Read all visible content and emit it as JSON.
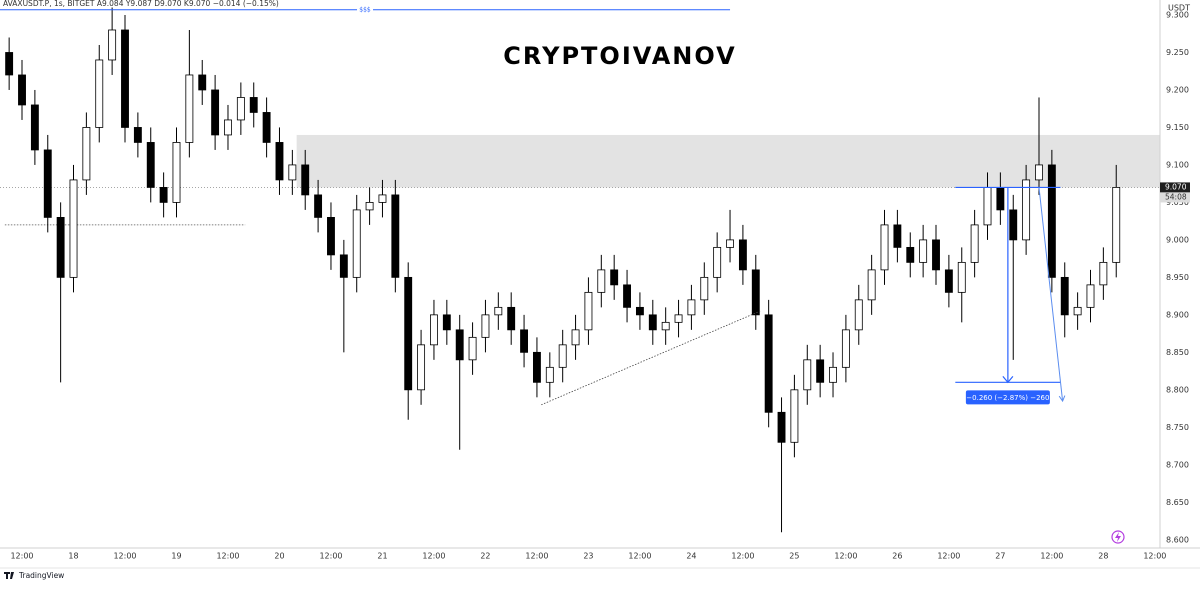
{
  "chart_data": {
    "type": "candlestick",
    "header": "AVAXUSDT.P, 1s, BITGET  A9.084  Y9.087  D9.070  K9.070  −0.014 (−0.15%)",
    "watermark": "CRYPTOIVANOV",
    "y_unit": "USDT",
    "footer": "TradingView",
    "up_color": "#ffffff",
    "down_color": "#000000",
    "outline_color": "#000000",
    "grid": false,
    "xlim": [
      -5.13,
      265.2
    ],
    "ylim": [
      8.589,
      9.32
    ],
    "xticks": [
      {
        "value": 0,
        "label": "12:00"
      },
      {
        "value": 12,
        "label": "18"
      },
      {
        "value": 24,
        "label": "12:00"
      },
      {
        "value": 36,
        "label": "19"
      },
      {
        "value": 48,
        "label": "12:00"
      },
      {
        "value": 60,
        "label": "20"
      },
      {
        "value": 72,
        "label": "12:00"
      },
      {
        "value": 84,
        "label": "21"
      },
      {
        "value": 96,
        "label": "12:00"
      },
      {
        "value": 108,
        "label": "22"
      },
      {
        "value": 120,
        "label": "12:00"
      },
      {
        "value": 132,
        "label": "23"
      },
      {
        "value": 144,
        "label": "12:00"
      },
      {
        "value": 156,
        "label": "24"
      },
      {
        "value": 168,
        "label": "12:00"
      },
      {
        "value": 180,
        "label": "25"
      },
      {
        "value": 192,
        "label": "12:00"
      },
      {
        "value": 204,
        "label": "26"
      },
      {
        "value": 216,
        "label": "12:00"
      },
      {
        "value": 228,
        "label": "27"
      },
      {
        "value": 240,
        "label": "12:00"
      },
      {
        "value": 252,
        "label": "28"
      },
      {
        "value": 264,
        "label": "12:00"
      }
    ],
    "yticks": [
      {
        "value": 8.6,
        "label": "8.600"
      },
      {
        "value": 8.65,
        "label": "8.650"
      },
      {
        "value": 8.7,
        "label": "8.700"
      },
      {
        "value": 8.75,
        "label": "8.750"
      },
      {
        "value": 8.8,
        "label": "8.800"
      },
      {
        "value": 8.85,
        "label": "8.850"
      },
      {
        "value": 8.9,
        "label": "8.900"
      },
      {
        "value": 8.95,
        "label": "8.950"
      },
      {
        "value": 9.0,
        "label": "9.000"
      },
      {
        "value": 9.05,
        "label": "9.050"
      },
      {
        "value": 9.1,
        "label": "9.100"
      },
      {
        "value": 9.15,
        "label": "9.150"
      },
      {
        "value": 9.2,
        "label": "9.200"
      },
      {
        "value": 9.25,
        "label": "9.250"
      },
      {
        "value": 9.3,
        "label": "9.300"
      }
    ],
    "x": [
      -3,
      0,
      3,
      6,
      9,
      12,
      15,
      18,
      21,
      24,
      27,
      30,
      33,
      36,
      39,
      42,
      45,
      48,
      51,
      54,
      57,
      60,
      63,
      66,
      69,
      72,
      75,
      78,
      81,
      84,
      87,
      90,
      93,
      96,
      99,
      102,
      105,
      108,
      111,
      114,
      117,
      120,
      123,
      126,
      129,
      132,
      135,
      138,
      141,
      144,
      147,
      150,
      153,
      156,
      159,
      162,
      165,
      168,
      171,
      174,
      177,
      180,
      183,
      186,
      189,
      192,
      195,
      198,
      201,
      204,
      207,
      210,
      213,
      216,
      219,
      222,
      225,
      228,
      231,
      234,
      237,
      240,
      243,
      246,
      249,
      252,
      255
    ],
    "open": [
      9.25,
      9.22,
      9.18,
      9.12,
      9.03,
      8.95,
      9.08,
      9.15,
      9.24,
      9.28,
      9.15,
      9.13,
      9.07,
      9.05,
      9.13,
      9.22,
      9.2,
      9.14,
      9.16,
      9.19,
      9.17,
      9.13,
      9.08,
      9.1,
      9.06,
      9.03,
      8.98,
      8.95,
      9.04,
      9.05,
      9.06,
      8.95,
      8.8,
      8.86,
      8.9,
      8.88,
      8.84,
      8.87,
      8.9,
      8.91,
      8.88,
      8.85,
      8.81,
      8.83,
      8.86,
      8.88,
      8.93,
      8.96,
      8.94,
      8.91,
      8.9,
      8.88,
      8.89,
      8.9,
      8.92,
      8.95,
      8.99,
      9.0,
      8.96,
      8.9,
      8.77,
      8.73,
      8.8,
      8.84,
      8.81,
      8.83,
      8.88,
      8.92,
      8.96,
      9.02,
      8.99,
      8.97,
      9.0,
      8.96,
      8.93,
      8.97,
      9.02,
      9.07,
      9.04,
      9.0,
      9.08,
      9.1,
      8.95,
      8.9,
      8.91,
      8.94,
      8.97
    ],
    "high": [
      9.27,
      9.24,
      9.2,
      9.14,
      9.05,
      9.1,
      9.17,
      9.26,
      9.31,
      9.3,
      9.17,
      9.15,
      9.09,
      9.15,
      9.28,
      9.24,
      9.22,
      9.18,
      9.21,
      9.21,
      9.19,
      9.15,
      9.12,
      9.12,
      9.08,
      9.05,
      9.0,
      9.06,
      9.07,
      9.08,
      9.08,
      8.97,
      8.88,
      8.92,
      8.92,
      8.9,
      8.89,
      8.92,
      8.93,
      8.93,
      8.9,
      8.87,
      8.85,
      8.88,
      8.9,
      8.95,
      8.98,
      8.98,
      8.96,
      8.93,
      8.92,
      8.91,
      8.92,
      8.94,
      8.97,
      9.01,
      9.04,
      9.02,
      8.98,
      8.92,
      8.79,
      8.82,
      8.86,
      8.86,
      8.85,
      8.9,
      8.94,
      8.98,
      9.04,
      9.04,
      9.01,
      9.02,
      9.02,
      8.98,
      8.99,
      9.04,
      9.09,
      9.09,
      9.06,
      9.1,
      9.19,
      9.12,
      8.97,
      8.93,
      8.96,
      8.99,
      9.1
    ],
    "low": [
      9.2,
      9.16,
      9.1,
      9.01,
      8.81,
      8.93,
      9.06,
      9.13,
      9.22,
      9.13,
      9.11,
      9.05,
      9.03,
      9.03,
      9.11,
      9.18,
      9.12,
      9.12,
      9.14,
      9.15,
      9.11,
      9.06,
      9.06,
      9.04,
      9.01,
      8.96,
      8.85,
      8.93,
      9.02,
      9.03,
      8.93,
      8.76,
      8.78,
      8.84,
      8.86,
      8.72,
      8.82,
      8.85,
      8.88,
      8.86,
      8.83,
      8.79,
      8.79,
      8.81,
      8.84,
      8.86,
      8.91,
      8.92,
      8.89,
      8.88,
      8.86,
      8.86,
      8.87,
      8.88,
      8.9,
      8.93,
      8.97,
      8.94,
      8.88,
      8.75,
      8.61,
      8.71,
      8.78,
      8.79,
      8.79,
      8.81,
      8.86,
      8.9,
      8.94,
      8.97,
      8.95,
      8.95,
      8.94,
      8.91,
      8.89,
      8.95,
      9.0,
      9.02,
      8.84,
      8.98,
      9.06,
      8.93,
      8.87,
      8.88,
      8.89,
      8.92,
      8.95
    ],
    "close": [
      9.22,
      9.18,
      9.12,
      9.03,
      8.95,
      9.08,
      9.15,
      9.24,
      9.28,
      9.15,
      9.13,
      9.07,
      9.05,
      9.13,
      9.22,
      9.2,
      9.14,
      9.16,
      9.19,
      9.17,
      9.13,
      9.08,
      9.1,
      9.06,
      9.03,
      8.98,
      8.95,
      9.04,
      9.05,
      9.06,
      8.95,
      8.8,
      8.86,
      8.9,
      8.88,
      8.84,
      8.87,
      8.9,
      8.91,
      8.88,
      8.85,
      8.81,
      8.83,
      8.86,
      8.88,
      8.93,
      8.96,
      8.94,
      8.91,
      8.9,
      8.88,
      8.89,
      8.9,
      8.92,
      8.95,
      8.99,
      9.0,
      8.96,
      8.9,
      8.77,
      8.73,
      8.8,
      8.84,
      8.81,
      8.83,
      8.88,
      8.92,
      8.96,
      9.02,
      8.99,
      8.97,
      9.0,
      8.96,
      8.93,
      8.97,
      9.02,
      9.07,
      9.04,
      9.0,
      9.08,
      9.1,
      8.95,
      8.9,
      8.91,
      8.94,
      8.97,
      9.07
    ],
    "last_price": {
      "value": 9.07,
      "label": "9.070",
      "countdown": "54:08"
    },
    "zone": {
      "low": 9.07,
      "high": 9.14,
      "start": 64
    },
    "level_line": {
      "value": 9.02,
      "start": -4,
      "end": 52
    },
    "top_line": {
      "value": 9.307,
      "start": -5.13,
      "end": 165,
      "label": "$$$"
    },
    "trend_line": {
      "x": [
        121,
        172
      ],
      "y": [
        8.78,
        8.905
      ]
    },
    "measure": {
      "from": 9.07,
      "to": 8.81,
      "start": 217.5,
      "end": 242,
      "label": "−0.260 (−2.87%) −260"
    },
    "arrow": {
      "x": [
        237,
        242.5
      ],
      "y": [
        9.07,
        8.785
      ]
    }
  }
}
